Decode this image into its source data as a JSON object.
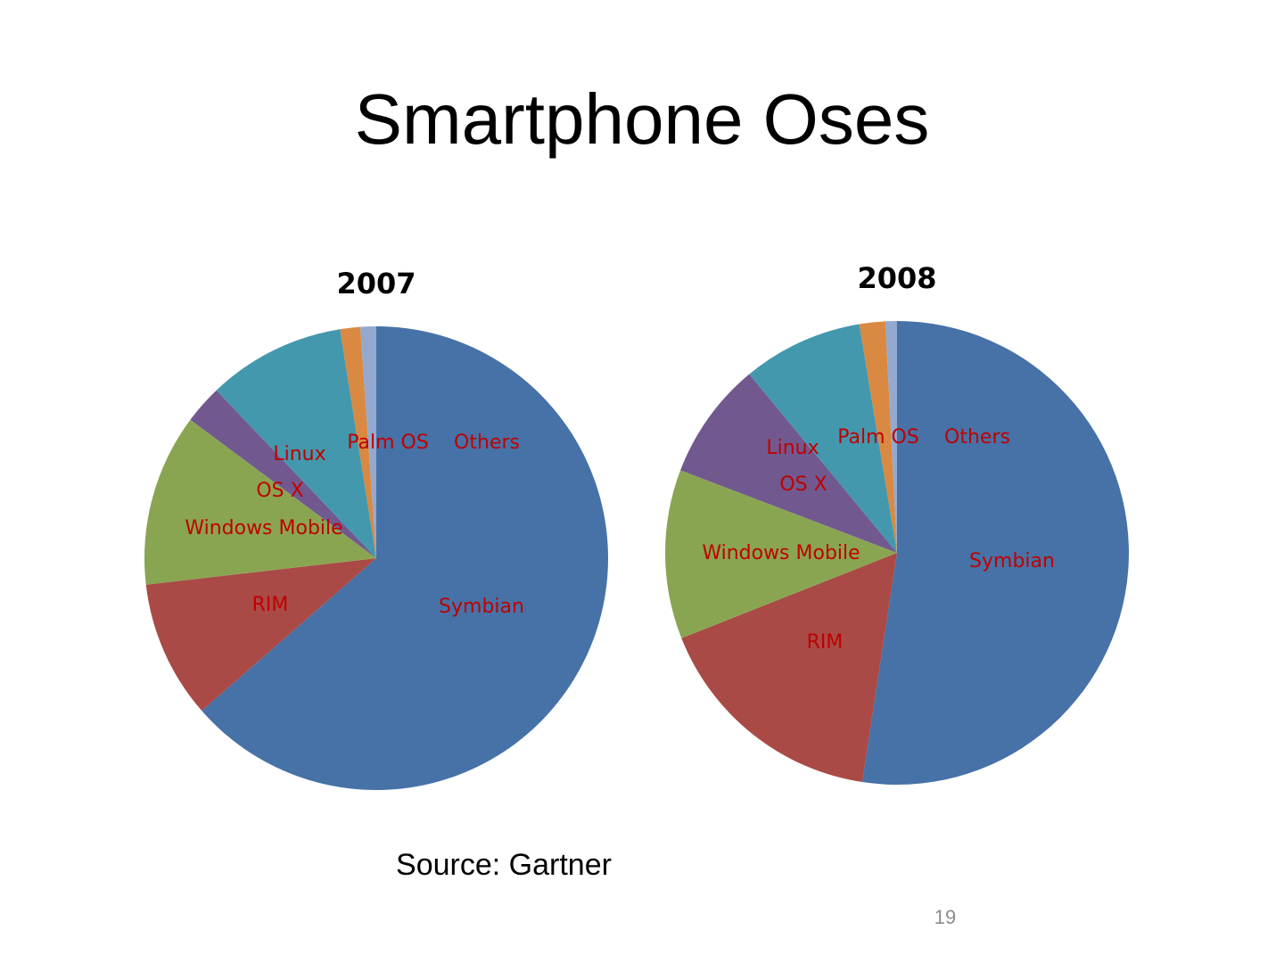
{
  "title": "Smartphone Oses",
  "chart_data": [
    {
      "type": "pie",
      "title": "2007",
      "categories": [
        "Symbian",
        "RIM",
        "Windows Mobile",
        "OS X",
        "Linux",
        "Palm OS",
        "Others"
      ],
      "values": [
        63.5,
        9.6,
        12.0,
        2.7,
        9.6,
        1.4,
        1.1
      ],
      "colors": [
        "#4672a7",
        "#a94a46",
        "#8aa552",
        "#71598f",
        "#4398ae",
        "#d98941",
        "#93a9cf"
      ]
    },
    {
      "type": "pie",
      "title": "2008",
      "categories": [
        "Symbian",
        "RIM",
        "Windows Mobile",
        "OS X",
        "Linux",
        "Palm OS",
        "Others"
      ],
      "values": [
        52.4,
        16.6,
        11.8,
        8.2,
        8.4,
        1.8,
        0.8
      ],
      "colors": [
        "#4672a7",
        "#a94a46",
        "#8aa552",
        "#71598f",
        "#4398ae",
        "#d98941",
        "#93a9cf"
      ]
    }
  ],
  "source": "Source: Gartner",
  "page_number": "19"
}
